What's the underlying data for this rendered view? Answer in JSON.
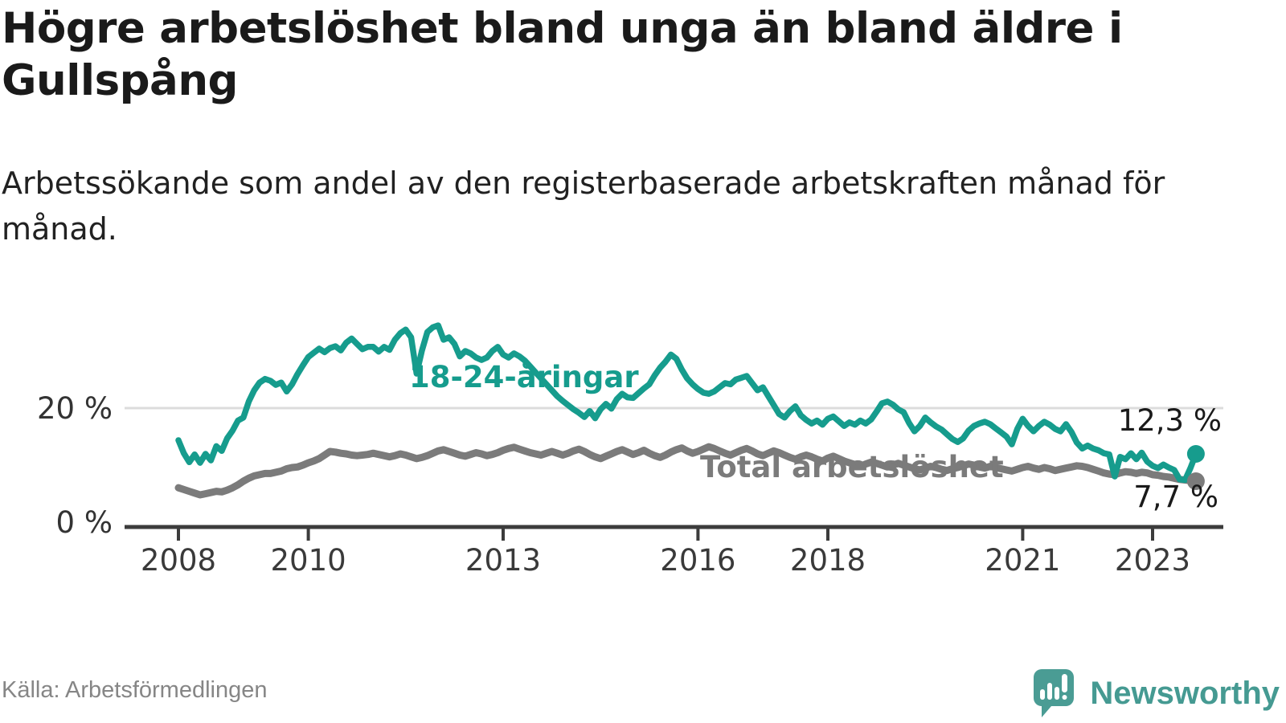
{
  "title": "Högre arbetslöshet bland unga än bland äldre i Gullspång",
  "subtitle": "Arbetssökande som andel av den registerbaserade arbetskraften månad för månad.",
  "source": "Källa: Arbetsförmedlingen",
  "brand": {
    "name": "Newsworthy",
    "logo_icon": "speech-bubble-with-bar-chart-and-exclamation"
  },
  "colors": {
    "youth_line": "#169c8d",
    "total_line": "#7b7b7b",
    "axis": "#3c3c3c",
    "gridline": "#dcdcdc",
    "title_text": "#1a1a1a",
    "tick_text": "#3a3a3a",
    "source_text": "#868686",
    "logo_box": "#4a9c94",
    "logo_text": "#459a92"
  },
  "chart_data": {
    "type": "line",
    "unit": "%",
    "interval": "monthly",
    "start": "2008-01",
    "end": "2023-09",
    "grid": "single-line-at-20",
    "legend_position": "inline-labels-on-lines",
    "ylim": [
      0,
      36
    ],
    "y_ticks": [
      {
        "value": 0,
        "label": "0 %"
      },
      {
        "value": 20,
        "label": "20 %"
      }
    ],
    "x_ticks": [
      2008,
      2010,
      2013,
      2016,
      2018,
      2021,
      2023
    ],
    "series": [
      {
        "name": "18-24-åringar",
        "color": "#169c8d",
        "end_value": 12.3,
        "end_label": "12,3 %",
        "values": [
          14.6,
          12.4,
          10.9,
          12.2,
          10.8,
          12.3,
          11.2,
          13.6,
          12.8,
          14.9,
          16.2,
          17.9,
          18.4,
          21.1,
          23.0,
          24.3,
          24.9,
          24.6,
          23.9,
          24.3,
          22.8,
          24.0,
          25.7,
          27.2,
          28.6,
          29.3,
          30.0,
          29.4,
          30.1,
          30.4,
          29.7,
          31.0,
          31.7,
          30.8,
          29.9,
          30.3,
          30.3,
          29.5,
          30.3,
          29.8,
          31.5,
          32.6,
          33.2,
          31.9,
          25.8,
          29.7,
          32.8,
          33.6,
          33.9,
          31.5,
          31.9,
          30.8,
          28.7,
          29.6,
          29.2,
          28.5,
          28.1,
          28.5,
          29.6,
          30.3,
          29.0,
          28.5,
          29.2,
          28.7,
          28.0,
          27.0,
          26.0,
          25.0,
          24.0,
          23.0,
          22.0,
          21.2,
          20.5,
          19.8,
          19.2,
          18.5,
          19.5,
          18.3,
          19.8,
          20.7,
          19.9,
          21.5,
          22.4,
          21.8,
          21.7,
          22.5,
          23.3,
          24.0,
          25.5,
          26.8,
          27.8,
          29.0,
          28.3,
          26.5,
          25.0,
          24.0,
          23.2,
          22.6,
          22.4,
          22.8,
          23.5,
          24.2,
          24.0,
          24.8,
          25.1,
          25.4,
          24.2,
          23.0,
          23.5,
          22.0,
          20.5,
          19.0,
          18.4,
          19.5,
          20.3,
          18.8,
          18.0,
          17.4,
          17.9,
          17.2,
          18.2,
          18.6,
          17.8,
          17.0,
          17.6,
          17.2,
          17.9,
          17.4,
          18.1,
          19.4,
          20.8,
          21.1,
          20.6,
          19.8,
          19.3,
          17.5,
          16.1,
          17.0,
          18.4,
          17.6,
          16.9,
          16.4,
          15.6,
          14.8,
          14.3,
          14.9,
          16.2,
          17.0,
          17.4,
          17.7,
          17.3,
          16.6,
          15.9,
          15.2,
          13.9,
          16.5,
          18.2,
          17.0,
          16.1,
          17.0,
          17.7,
          17.2,
          16.5,
          16.1,
          17.3,
          16.0,
          14.2,
          13.2,
          13.7,
          13.2,
          12.9,
          12.4,
          12.2,
          8.5,
          11.8,
          11.4,
          12.4,
          11.4,
          12.5,
          11.0,
          10.3,
          9.9,
          10.5,
          10.0,
          9.6,
          8.0,
          7.9,
          9.9,
          12.3
        ]
      },
      {
        "name": "Total arbetslöshet",
        "color": "#7b7b7b",
        "end_value": 7.7,
        "end_label": "7,7 %",
        "values": [
          6.6,
          6.3,
          6.0,
          5.7,
          5.4,
          5.6,
          5.8,
          6.0,
          5.9,
          6.2,
          6.6,
          7.1,
          7.7,
          8.2,
          8.6,
          8.8,
          9.0,
          9.0,
          9.2,
          9.4,
          9.8,
          10.0,
          10.1,
          10.4,
          10.8,
          11.1,
          11.5,
          12.1,
          12.7,
          12.6,
          12.4,
          12.3,
          12.1,
          12.0,
          12.1,
          12.2,
          12.4,
          12.2,
          12.0,
          11.8,
          12.0,
          12.3,
          12.1,
          11.8,
          11.5,
          11.7,
          12.0,
          12.4,
          12.8,
          13.0,
          12.7,
          12.4,
          12.1,
          11.9,
          12.2,
          12.5,
          12.3,
          12.0,
          12.2,
          12.5,
          12.9,
          13.2,
          13.4,
          13.1,
          12.8,
          12.5,
          12.3,
          12.1,
          12.4,
          12.7,
          12.4,
          12.1,
          12.4,
          12.8,
          13.1,
          12.7,
          12.2,
          11.8,
          11.5,
          11.9,
          12.3,
          12.7,
          13.0,
          12.6,
          12.2,
          12.5,
          12.9,
          12.4,
          12.0,
          11.7,
          12.1,
          12.6,
          13.0,
          13.3,
          12.8,
          12.4,
          12.7,
          13.1,
          13.5,
          13.2,
          12.8,
          12.4,
          12.1,
          12.5,
          12.9,
          13.2,
          12.8,
          12.3,
          12.0,
          12.4,
          12.8,
          12.5,
          12.1,
          11.7,
          11.4,
          11.8,
          12.1,
          11.8,
          11.4,
          11.1,
          11.6,
          11.9,
          11.5,
          11.1,
          10.8,
          10.5,
          10.2,
          10.6,
          10.9,
          10.7,
          10.4,
          10.1,
          10.4,
          10.7,
          10.4,
          10.1,
          9.8,
          9.6,
          9.9,
          10.2,
          10.0,
          9.7,
          9.5,
          9.8,
          10.0,
          10.3,
          10.6,
          10.4,
          10.1,
          9.9,
          10.2,
          10.0,
          9.8,
          9.6,
          9.4,
          9.7,
          10.0,
          10.2,
          9.9,
          9.7,
          10.0,
          9.8,
          9.5,
          9.7,
          9.9,
          10.1,
          10.3,
          10.2,
          10.0,
          9.7,
          9.4,
          9.1,
          8.9,
          8.8,
          9.1,
          9.3,
          9.2,
          9.0,
          9.2,
          9.1,
          8.8,
          8.7,
          8.5,
          8.4,
          8.2,
          8.0,
          7.9,
          7.8,
          7.7
        ]
      }
    ]
  }
}
